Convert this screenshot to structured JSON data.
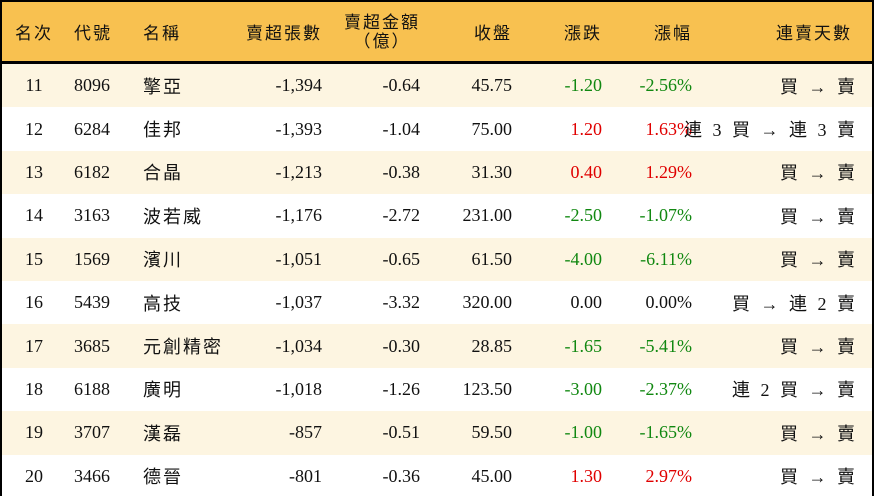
{
  "headers": {
    "rank": "名次",
    "code": "代號",
    "name": "名稱",
    "shares": "賣超張數",
    "amount_1": "賣超金額",
    "amount_2": "（億）",
    "close": "收盤",
    "change": "漲跌",
    "pct": "漲幅",
    "streak": "連賣天數"
  },
  "colors": {
    "header_bg": "#f8c150",
    "stripe": "#fdf5e1",
    "up": "#e00000",
    "down": "#118811"
  },
  "rows": [
    {
      "rank": "11",
      "code": "8096",
      "name": "擎亞",
      "shares": "-1,394",
      "amount": "-0.64",
      "close": "45.75",
      "change": "-1.20",
      "pct": "-2.56%",
      "dir": "down",
      "streak": "買 → 賣"
    },
    {
      "rank": "12",
      "code": "6284",
      "name": "佳邦",
      "shares": "-1,393",
      "amount": "-1.04",
      "close": "75.00",
      "change": "1.20",
      "pct": "1.63%",
      "dir": "up",
      "streak": "連 3 買 → 連 3 賣"
    },
    {
      "rank": "13",
      "code": "6182",
      "name": "合晶",
      "shares": "-1,213",
      "amount": "-0.38",
      "close": "31.30",
      "change": "0.40",
      "pct": "1.29%",
      "dir": "up",
      "streak": "買 → 賣"
    },
    {
      "rank": "14",
      "code": "3163",
      "name": "波若威",
      "shares": "-1,176",
      "amount": "-2.72",
      "close": "231.00",
      "change": "-2.50",
      "pct": "-1.07%",
      "dir": "down",
      "streak": "買 → 賣"
    },
    {
      "rank": "15",
      "code": "1569",
      "name": "濱川",
      "shares": "-1,051",
      "amount": "-0.65",
      "close": "61.50",
      "change": "-4.00",
      "pct": "-6.11%",
      "dir": "down",
      "streak": "買 → 賣"
    },
    {
      "rank": "16",
      "code": "5439",
      "name": "高技",
      "shares": "-1,037",
      "amount": "-3.32",
      "close": "320.00",
      "change": "0.00",
      "pct": "0.00%",
      "dir": "flat",
      "streak": "買 → 連 2 賣"
    },
    {
      "rank": "17",
      "code": "3685",
      "name": "元創精密",
      "shares": "-1,034",
      "amount": "-0.30",
      "close": "28.85",
      "change": "-1.65",
      "pct": "-5.41%",
      "dir": "down",
      "streak": "買 → 賣"
    },
    {
      "rank": "18",
      "code": "6188",
      "name": "廣明",
      "shares": "-1,018",
      "amount": "-1.26",
      "close": "123.50",
      "change": "-3.00",
      "pct": "-2.37%",
      "dir": "down",
      "streak": "連 2 買 → 賣"
    },
    {
      "rank": "19",
      "code": "3707",
      "name": "漢磊",
      "shares": "-857",
      "amount": "-0.51",
      "close": "59.50",
      "change": "-1.00",
      "pct": "-1.65%",
      "dir": "down",
      "streak": "買 → 賣"
    },
    {
      "rank": "20",
      "code": "3466",
      "name": "德晉",
      "shares": "-801",
      "amount": "-0.36",
      "close": "45.00",
      "change": "1.30",
      "pct": "2.97%",
      "dir": "up",
      "streak": "買 → 賣"
    }
  ]
}
